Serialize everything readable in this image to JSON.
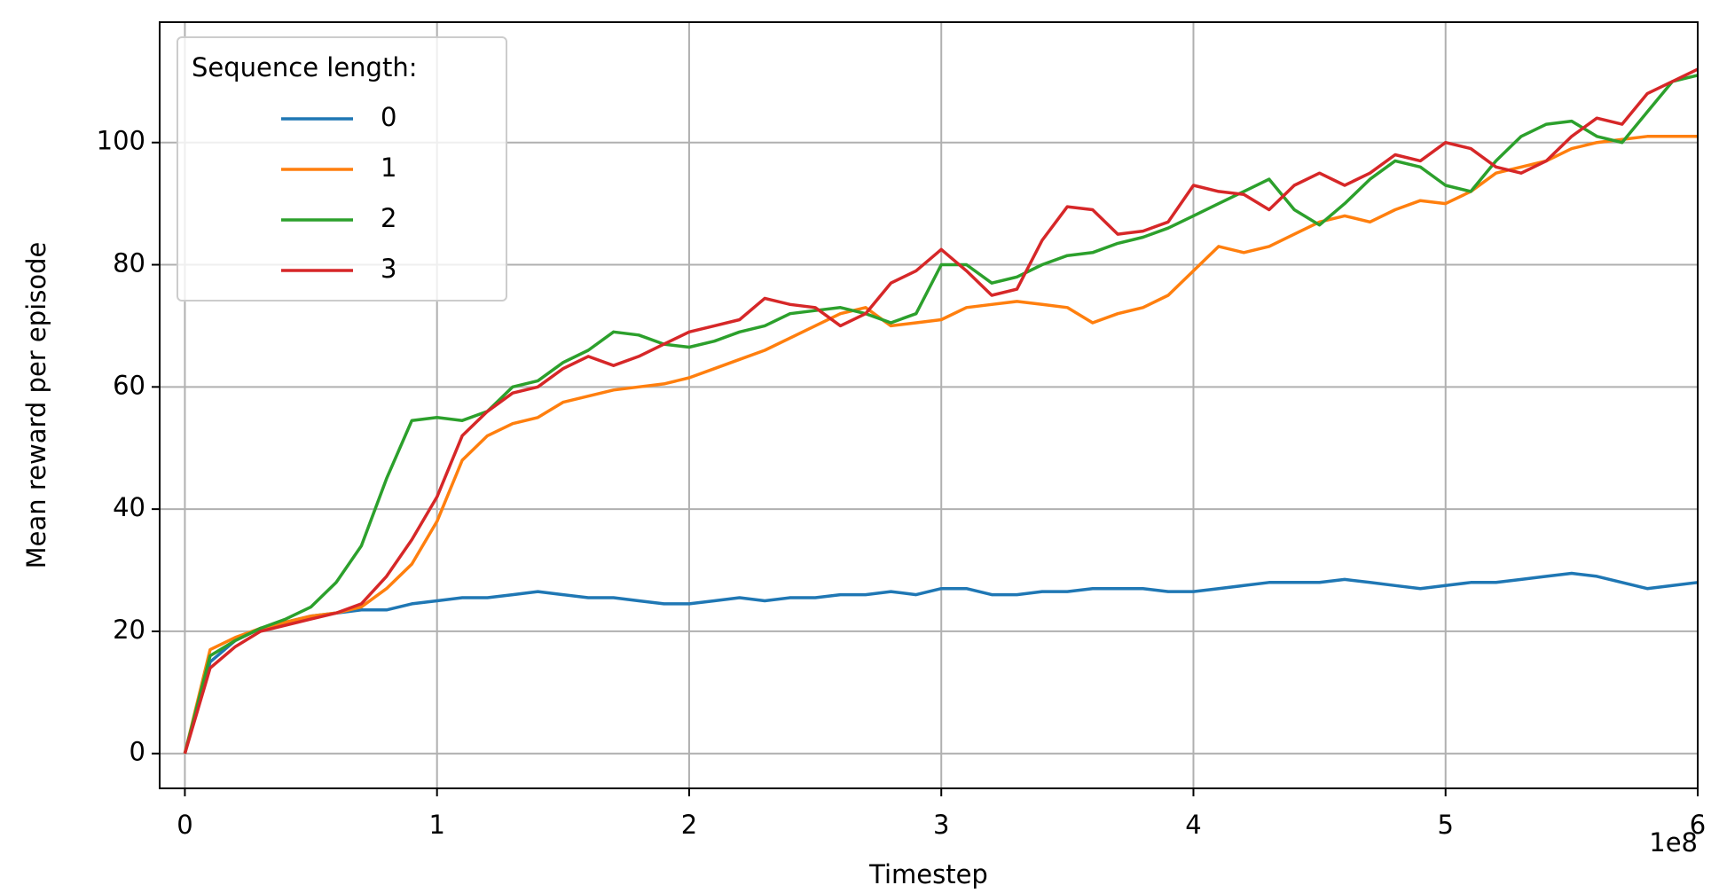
{
  "chart_data": {
    "type": "line",
    "xlabel": "Timestep",
    "ylabel": "Mean reward per episode",
    "x_offset_label": "1e8",
    "legend_title": "Sequence length:",
    "legend_loc": "upper left",
    "grid": true,
    "xlim": [
      -0.1,
      6
    ],
    "ylim": [
      -5.7,
      119.7
    ],
    "xticks": [
      0,
      1,
      2,
      3,
      4,
      5,
      6
    ],
    "yticks": [
      0,
      20,
      40,
      60,
      80,
      100
    ],
    "x": [
      0,
      0.1,
      0.2,
      0.3,
      0.4,
      0.5,
      0.6,
      0.7,
      0.8,
      0.9,
      1,
      1.1,
      1.2,
      1.3,
      1.4,
      1.5,
      1.6,
      1.7,
      1.8,
      1.9,
      2,
      2.1,
      2.2,
      2.3,
      2.4,
      2.5,
      2.6,
      2.7,
      2.8,
      2.9,
      3,
      3.1,
      3.2,
      3.3,
      3.4,
      3.5,
      3.6,
      3.7,
      3.8,
      3.9,
      4,
      4.1,
      4.2,
      4.3,
      4.4,
      4.5,
      4.6,
      4.7,
      4.8,
      4.9,
      5,
      5.1,
      5.2,
      5.3,
      5.4,
      5.5,
      5.6,
      5.7,
      5.8,
      5.9,
      6
    ],
    "series": [
      {
        "name": "0",
        "color": "#1f77b4",
        "values": [
          0,
          15,
          18.5,
          20.5,
          21.5,
          22.5,
          23,
          23.5,
          23.5,
          24.5,
          25,
          25.5,
          25.5,
          26,
          26.5,
          26,
          25.5,
          25.5,
          25,
          24.5,
          24.5,
          25,
          25.5,
          25,
          25.5,
          25.5,
          26,
          26,
          26.5,
          26,
          27,
          27,
          26,
          26,
          26.5,
          26.5,
          27,
          27,
          27,
          26.5,
          26.5,
          27,
          27.5,
          28,
          28,
          28,
          28.5,
          28,
          27.5,
          27,
          27.5,
          28,
          28,
          28.5,
          29,
          29.5,
          29,
          28,
          27,
          27.5,
          28
        ]
      },
      {
        "name": "1",
        "color": "#ff7f0e",
        "values": [
          0,
          17,
          19,
          20.5,
          21.5,
          22.5,
          23,
          24,
          27,
          31,
          38,
          48,
          52,
          54,
          55,
          57.5,
          58.5,
          59.5,
          60,
          60.5,
          61.5,
          63,
          64.5,
          66,
          68,
          70,
          72,
          73,
          70,
          70.5,
          71,
          73,
          73.5,
          74,
          73.5,
          73,
          70.5,
          72,
          73,
          75,
          79,
          83,
          82,
          83,
          85,
          87,
          88,
          87,
          89,
          90.5,
          90,
          92,
          95,
          96,
          97,
          99,
          100,
          100.5,
          101,
          101,
          101
        ]
      },
      {
        "name": "2",
        "color": "#2ca02c",
        "values": [
          0,
          16,
          18.5,
          20.5,
          22,
          24,
          28,
          34,
          45,
          54.5,
          55,
          54.5,
          56,
          60,
          61,
          64,
          66,
          69,
          68.5,
          67,
          66.5,
          67.5,
          69,
          70,
          72,
          72.5,
          73,
          72,
          70.5,
          72,
          80,
          80,
          77,
          78,
          80,
          81.5,
          82,
          83.5,
          84.5,
          86,
          88,
          90,
          92,
          94,
          89,
          86.5,
          90,
          94,
          97,
          96,
          93,
          92,
          97,
          101,
          103,
          103.5,
          101,
          100,
          105,
          110,
          111
        ]
      },
      {
        "name": "3",
        "color": "#d62728",
        "values": [
          0,
          14,
          17.5,
          20,
          21,
          22,
          23,
          24.5,
          29,
          35,
          42,
          52,
          56,
          59,
          60,
          63,
          65,
          63.5,
          65,
          67,
          69,
          70,
          71,
          74.5,
          73.5,
          73,
          70,
          72,
          77,
          79,
          82.5,
          79,
          75,
          76,
          84,
          89.5,
          89,
          85,
          85.5,
          87,
          93,
          92,
          91.5,
          89,
          93,
          95,
          93,
          95,
          98,
          97,
          100,
          99,
          96,
          95,
          97,
          101,
          104,
          103,
          108,
          110,
          112
        ]
      }
    ]
  }
}
